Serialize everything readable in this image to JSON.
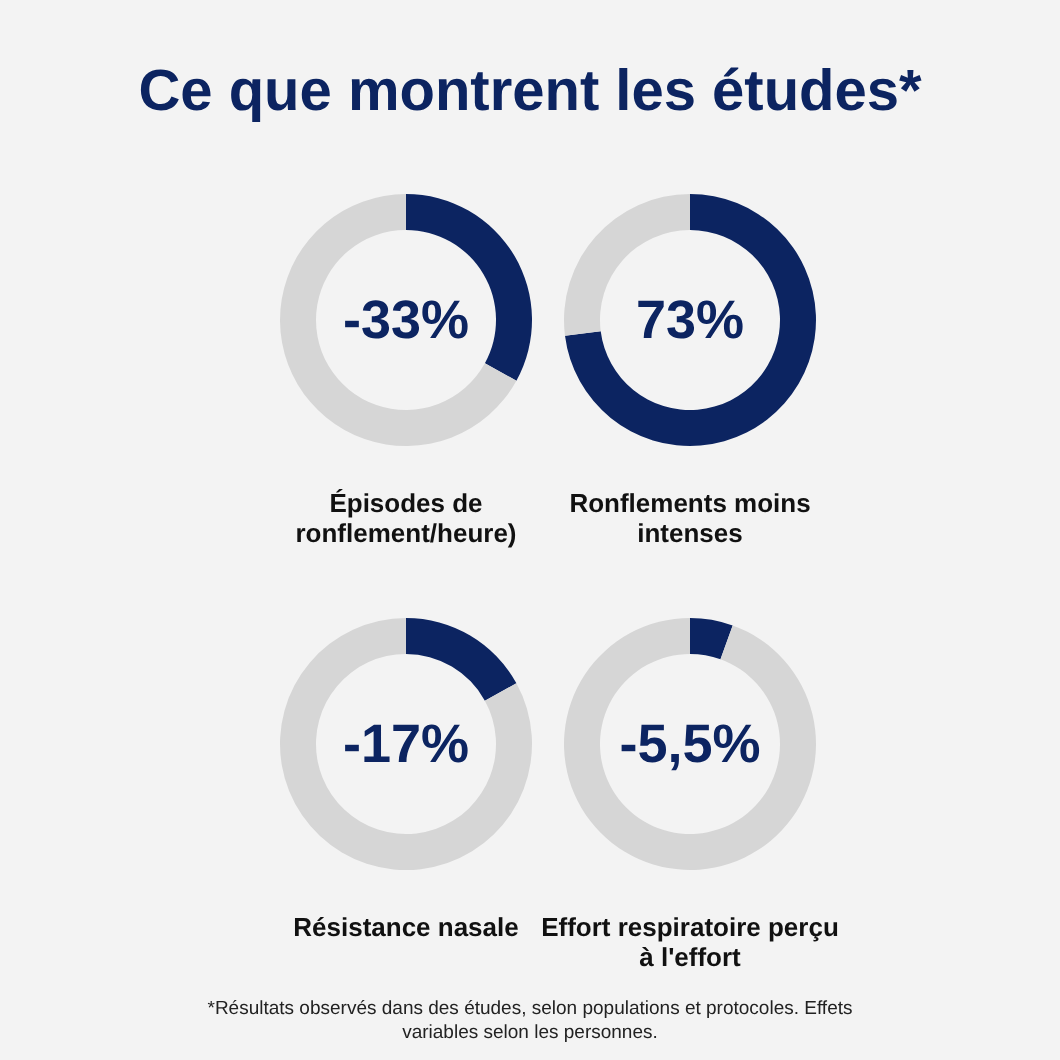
{
  "chart_data": [
    {
      "type": "donut",
      "title": "Ce que montrent les études*",
      "subtitle": "Épisodes de ronflement/heure)",
      "categories": [
        null,
        null
      ],
      "values": [
        33,
        67
      ],
      "colors": [
        "#0c2461",
        "#d6d6d6"
      ],
      "annotations": [
        "-33%"
      ]
    },
    {
      "type": "donut",
      "subtitle": "Ronflements moins intenses",
      "categories": [
        null,
        null
      ],
      "values": [
        73,
        27
      ],
      "colors": [
        "#0c2461",
        "#d6d6d6"
      ],
      "annotations": [
        "73%"
      ]
    },
    {
      "type": "donut",
      "subtitle": "Résistance nasale",
      "categories": [
        null,
        null
      ],
      "values": [
        17,
        83
      ],
      "colors": [
        "#0c2461",
        "#d6d6d6"
      ],
      "annotations": [
        "-17%"
      ]
    },
    {
      "type": "donut",
      "subtitle": "Effort respiratoire perçu à l'effort",
      "categories": [
        null,
        null
      ],
      "values": [
        5.5,
        94.5
      ],
      "colors": [
        "#0c2461",
        "#d6d6d6"
      ],
      "annotations": [
        "-5,5%",
        "*Résultats observés dans des études, selon populations et protocoles. Effets variables selon les personnes."
      ]
    }
  ]
}
